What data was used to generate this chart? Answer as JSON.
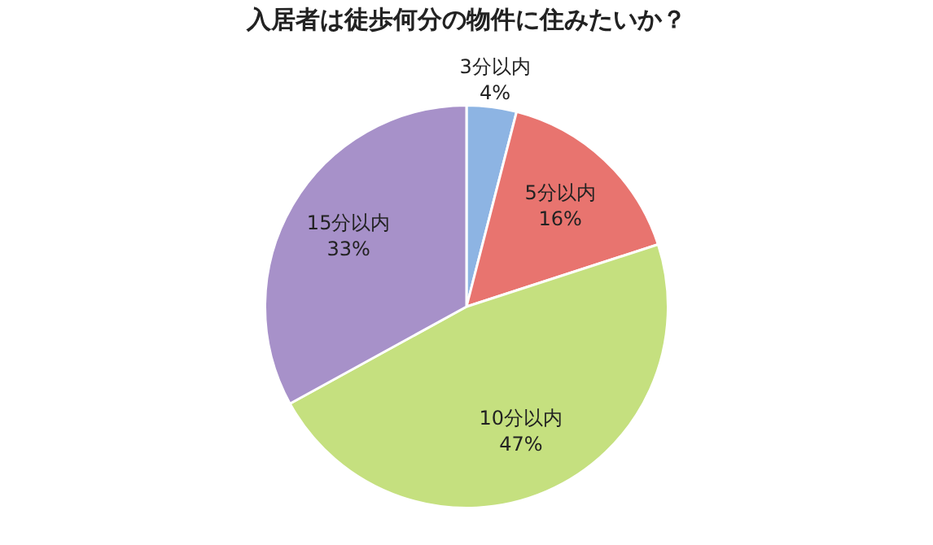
{
  "chart_data": {
    "type": "pie",
    "title": "入居者は徒歩何分の物件に住みたいか？",
    "categories": [
      "3分以内",
      "5分以内",
      "10分以内",
      "15分以内"
    ],
    "values": [
      4,
      16,
      47,
      33
    ],
    "colors": [
      "#8db4e3",
      "#e8746f",
      "#c5e07f",
      "#a791c9"
    ],
    "value_labels": [
      "4%",
      "16%",
      "47%",
      "33%"
    ],
    "legend": false,
    "data_labels": true
  }
}
